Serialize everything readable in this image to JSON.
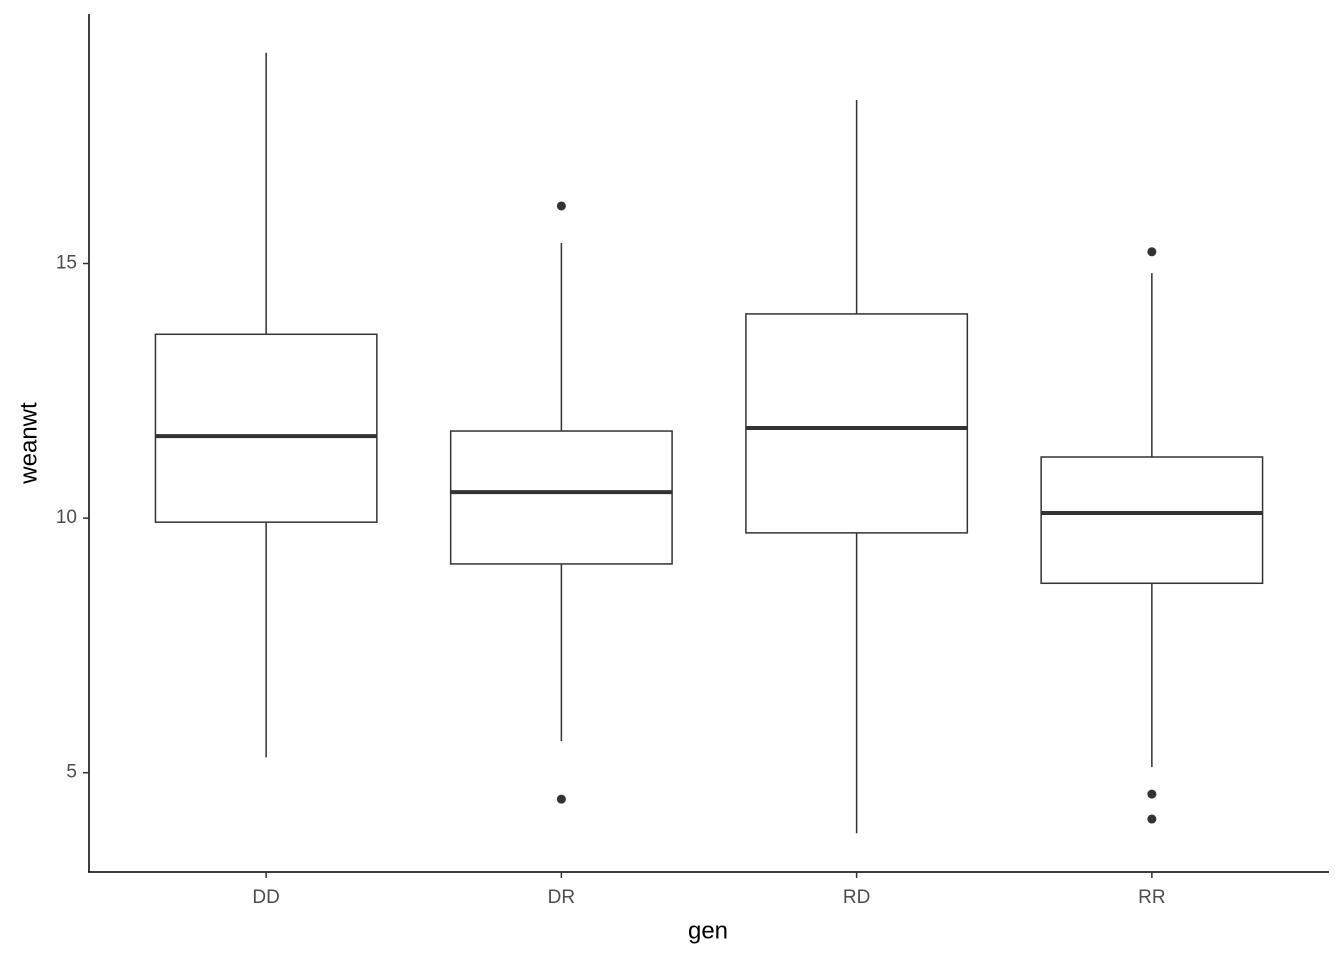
{
  "chart_data": {
    "type": "box",
    "x_label": "gen",
    "y_label": "weanwt",
    "categories": [
      "DD",
      "DR",
      "RD",
      "RR"
    ],
    "min": [
      5.3,
      5.62,
      3.81,
      5.11
    ],
    "q1": [
      9.92,
      9.1,
      9.71,
      8.72
    ],
    "median": [
      11.61,
      10.51,
      11.77,
      10.1
    ],
    "q3": [
      13.61,
      11.71,
      14.01,
      11.2
    ],
    "max": [
      19.14,
      15.4,
      18.21,
      14.81
    ],
    "outliers": [
      [],
      [
        16.13,
        4.48
      ],
      [],
      [
        15.23,
        4.58,
        4.09
      ]
    ],
    "color": "#333333",
    "ylim": [
      3.05,
      19.9
    ],
    "yticks": [
      5,
      10,
      15
    ],
    "grid": false
  }
}
